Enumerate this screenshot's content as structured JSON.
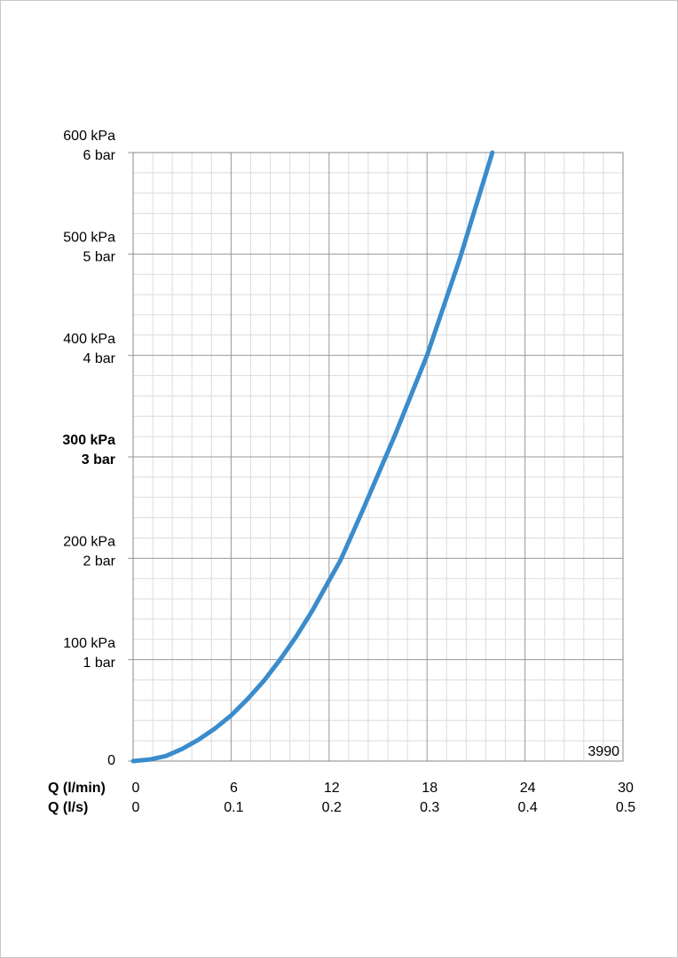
{
  "chart_data": {
    "type": "line",
    "x_label": "Q (l/min)",
    "x2_label": "Q (l/s)",
    "xlim": [
      0,
      30
    ],
    "xticks": [
      0,
      6,
      12,
      18,
      24,
      30
    ],
    "x2lim": [
      0,
      0.5
    ],
    "x2ticks": [
      0,
      0.1,
      0.2,
      0.3,
      0.4,
      0.5
    ],
    "ylim": [
      0,
      600
    ],
    "yticks": [
      0,
      {
        "value": 100,
        "label": "100 kPa"
      },
      {
        "value": 200,
        "label": "200 kPa"
      },
      {
        "value": 300,
        "label": "300 kPa",
        "bold": true
      },
      {
        "value": 400,
        "label": "400 kPa"
      },
      {
        "value": 500,
        "label": "500 kPa"
      },
      {
        "value": 600,
        "label": "600 kPa"
      }
    ],
    "ytick_bar_labels": [
      null,
      "1 bar",
      "2 bar",
      "3 bar",
      "4 bar",
      "5 bar",
      "6 bar"
    ],
    "grid": true,
    "minor_grid_divisions": 5,
    "watermark": "3990",
    "series": [
      {
        "name": "3990",
        "color": "#3a8ccc",
        "x": [
          0,
          1,
          2,
          3,
          4,
          5,
          6,
          7,
          8,
          9,
          10,
          11,
          12,
          12.7,
          14,
          16,
          18,
          20,
          22
        ],
        "values": [
          0,
          1.5,
          5,
          12,
          21,
          32,
          45,
          61,
          79,
          100,
          123,
          149,
          178,
          198,
          245,
          320,
          400,
          495,
          600
        ]
      }
    ]
  }
}
